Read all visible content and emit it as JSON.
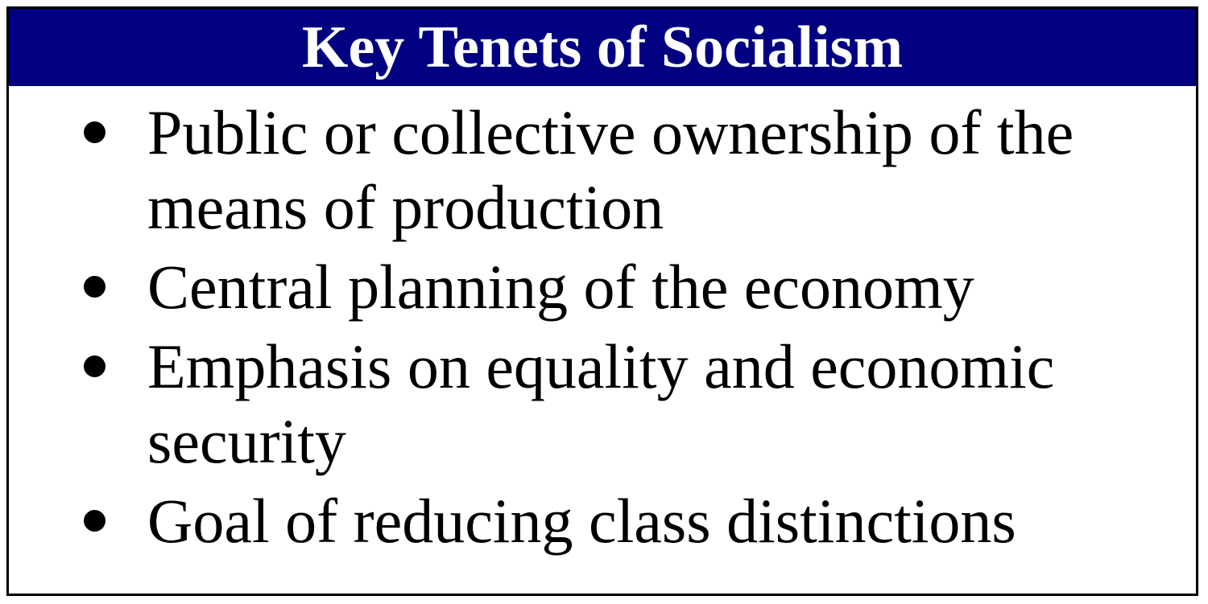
{
  "box": {
    "title": "Key Tenets of Socialism",
    "header_color": "#000080",
    "items": [
      "Public or collective ownership of the means of production",
      "Central planning of the economy",
      "Emphasis on equality and economic security",
      "Goal of reducing class distinctions"
    ]
  }
}
